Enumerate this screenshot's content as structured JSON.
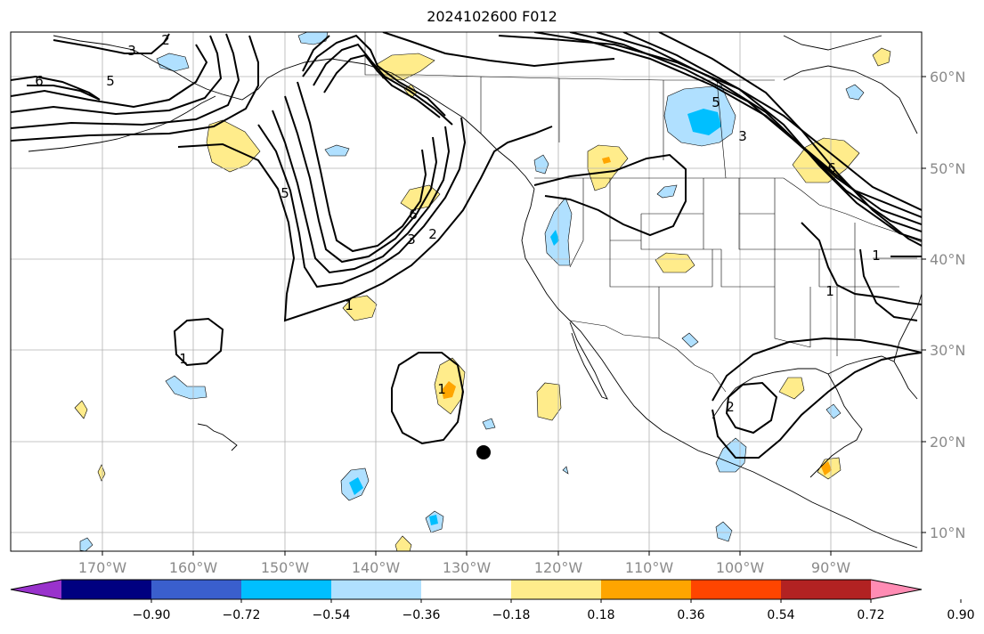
{
  "title": "2024102600 F012",
  "lon_labels": [
    "170°W",
    "160°W",
    "150°W",
    "140°W",
    "130°W",
    "120°W",
    "110°W",
    "100°W",
    "90°W"
  ],
  "lat_labels": [
    "60°N",
    "50°N",
    "40°N",
    "30°N",
    "20°N",
    "10°N"
  ],
  "contour_labels": [
    "6",
    "5",
    "3",
    "2",
    "5",
    "3",
    "2",
    "6",
    "5",
    "3",
    "6",
    "1",
    "1",
    "1",
    "1",
    "2",
    "1"
  ],
  "colorbar": {
    "colors": [
      "#9932cc",
      "#000080",
      "#3a5fcd",
      "#00bfff",
      "#b0e0ff",
      "#ffffff",
      "#ffec8b",
      "#ffa500",
      "#ff4500",
      "#b22222",
      "#ff8cb4"
    ],
    "tick_labels": [
      "−0.90",
      "−0.72",
      "−0.54",
      "−0.36",
      "−0.18",
      "0.18",
      "0.36",
      "0.54",
      "0.72",
      "0.90"
    ]
  },
  "marker_color": "#000000"
}
